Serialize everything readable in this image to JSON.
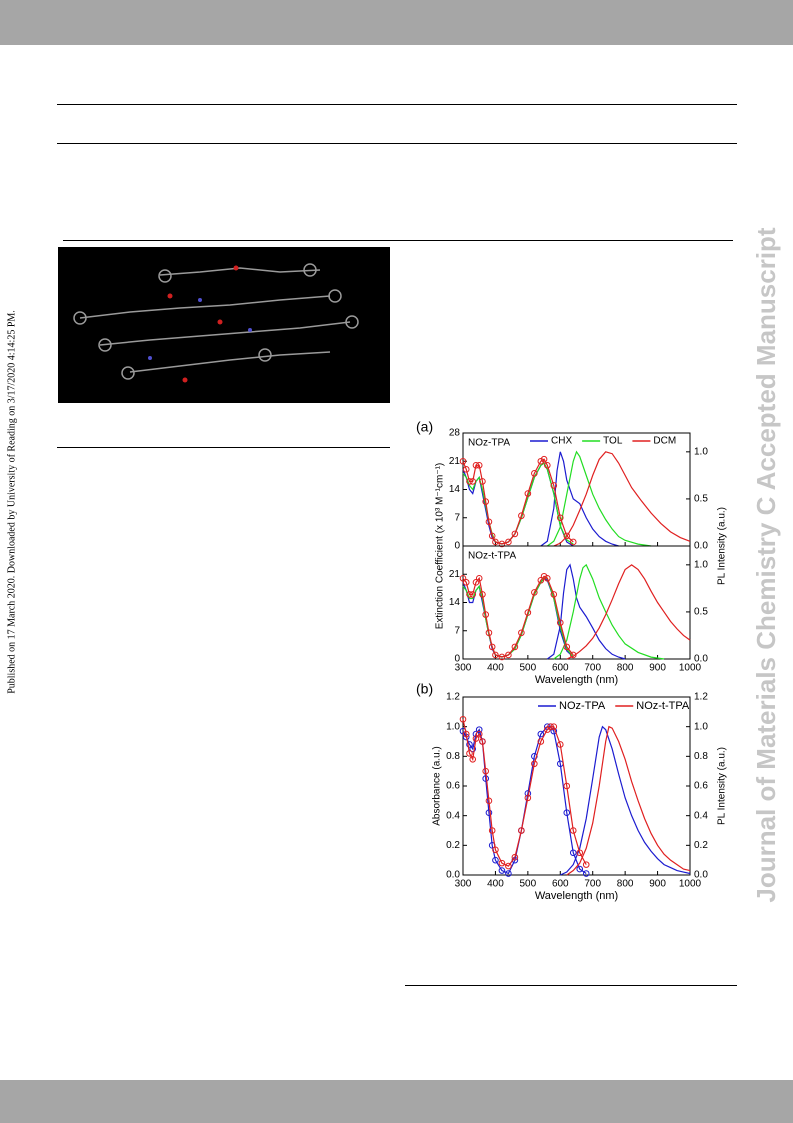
{
  "sidebar_left": "Published on 17 March 2020. Downloaded by University of Reading on 3/17/2020 4:14:25 PM.",
  "sidebar_right": "Journal of Materials Chemistry C Accepted Manuscript",
  "chart_data": [
    {
      "type": "line",
      "panel_label": "(a)",
      "title": "NOz-TPA",
      "ylabel": "Extinction Coefficient (x 10³ M⁻¹cm⁻¹)",
      "y2label": "PL Intensity (a.u.)",
      "xlim": [
        300,
        1000
      ],
      "xticks": [
        300,
        400,
        500,
        600,
        700,
        800,
        900,
        1000
      ],
      "xtick_labels": false,
      "ylim": [
        0,
        28
      ],
      "yticks": [
        0,
        7,
        14,
        21,
        28
      ],
      "y2lim": [
        0,
        1.2
      ],
      "y2ticks": [
        {
          "value": 0,
          "label": "0.0"
        },
        {
          "value": 0.5,
          "label": "0.5"
        },
        {
          "value": 1,
          "label": "1.0"
        }
      ],
      "legend": "top-right",
      "series": [
        {
          "name": "CHX",
          "color": "#1c1cd0",
          "absorption": {
            "x": [
              300,
              310,
              320,
              330,
              340,
              350,
              360,
              370,
              380,
              390,
              400,
              420,
              440,
              460,
              480,
              500,
              520,
              540,
              550,
              560,
              580,
              600,
              620,
              640
            ],
            "values": [
              19,
              17,
              14,
              13,
              16,
              17,
              13,
              9,
              5,
              2,
              1,
              0.5,
              1,
              3,
              7,
              12,
              17,
              20,
              20.5,
              19,
              13,
              5,
              1,
              0
            ],
            "markers": false
          },
          "emission": {
            "x": [
              540,
              560,
              580,
              590,
              600,
              610,
              620,
              640,
              660,
              680,
              700,
              720,
              740,
              760,
              780
            ],
            "values": [
              0,
              0.05,
              0.4,
              0.8,
              1.0,
              0.9,
              0.7,
              0.5,
              0.45,
              0.3,
              0.18,
              0.1,
              0.05,
              0.02,
              0
            ],
            "axis": "y2"
          }
        },
        {
          "name": "TOL",
          "color": "#22dd22",
          "absorption": {
            "x": [
              300,
              310,
              320,
              330,
              340,
              350,
              360,
              370,
              380,
              390,
              400,
              420,
              440,
              460,
              480,
              500,
              520,
              540,
              550,
              560,
              580,
              600,
              620,
              640
            ],
            "values": [
              18,
              17,
              15,
              14,
              16,
              17,
              14,
              10,
              6,
              3,
              1,
              0.5,
              1,
              3,
              7,
              12,
              17,
              20,
              20.5,
              19,
              13,
              5,
              1.5,
              0.5
            ],
            "markers": false
          },
          "emission": {
            "x": [
              560,
              580,
              600,
              620,
              640,
              650,
              660,
              680,
              700,
              720,
              740,
              760,
              780,
              800,
              840,
              880
            ],
            "values": [
              0,
              0.05,
              0.2,
              0.55,
              0.9,
              1.0,
              0.95,
              0.75,
              0.55,
              0.4,
              0.28,
              0.18,
              0.1,
              0.06,
              0.02,
              0
            ],
            "axis": "y2"
          }
        },
        {
          "name": "DCM",
          "color": "#e02020",
          "absorption": {
            "x": [
              300,
              310,
              320,
              330,
              340,
              350,
              360,
              370,
              380,
              390,
              400,
              420,
              440,
              460,
              480,
              500,
              520,
              540,
              550,
              560,
              580,
              600,
              620,
              640
            ],
            "values": [
              21,
              19,
              16,
              16,
              20,
              20,
              16,
              11,
              6,
              2.5,
              1,
              0.5,
              1,
              3,
              7.5,
              13,
              18,
              21,
              21.5,
              20,
              15,
              7,
              2.5,
              1
            ],
            "markers": true
          },
          "emission": {
            "x": [
              580,
              600,
              620,
              640,
              660,
              680,
              700,
              720,
              740,
              760,
              780,
              800,
              820,
              850,
              880,
              910,
              940,
              970,
              1000
            ],
            "values": [
              0,
              0.03,
              0.1,
              0.22,
              0.38,
              0.55,
              0.75,
              0.92,
              1.0,
              0.98,
              0.88,
              0.75,
              0.62,
              0.48,
              0.35,
              0.24,
              0.15,
              0.09,
              0.05
            ],
            "axis": "y2"
          }
        }
      ]
    },
    {
      "type": "line",
      "title": "NOz-t-TPA",
      "xlabel": "Wavelength (nm)",
      "xlim": [
        300,
        1000
      ],
      "xticks": [
        300,
        400,
        500,
        600,
        700,
        800,
        900,
        1000
      ],
      "ylim": [
        0,
        28
      ],
      "yticks": [
        0,
        7,
        14,
        21
      ],
      "y2lim": [
        0,
        1.2
      ],
      "y2ticks": [
        {
          "value": 0,
          "label": "0.0"
        },
        {
          "value": 0.5,
          "label": "0.5"
        },
        {
          "value": 1,
          "label": "1.0"
        }
      ],
      "series": [
        {
          "color": "#1c1cd0",
          "absorption": {
            "x": [
              300,
              310,
              320,
              330,
              340,
              350,
              360,
              370,
              380,
              390,
              400,
              420,
              440,
              460,
              480,
              500,
              520,
              540,
              550,
              560,
              580,
              600,
              620,
              640
            ],
            "values": [
              19,
              17,
              14,
              14,
              17,
              18,
              14,
              10,
              6,
              2.5,
              1,
              0.5,
              1,
              2.5,
              6,
              11,
              16,
              19,
              20,
              19.5,
              15,
              7,
              2,
              0.5
            ],
            "markers": false
          },
          "emission": {
            "x": [
              560,
              580,
              600,
              610,
              620,
              630,
              640,
              650,
              660,
              680,
              700,
              720,
              740,
              760,
              780,
              800
            ],
            "values": [
              0,
              0.05,
              0.35,
              0.7,
              0.95,
              1.0,
              0.85,
              0.65,
              0.55,
              0.45,
              0.33,
              0.2,
              0.11,
              0.05,
              0.02,
              0
            ],
            "axis": "y2"
          }
        },
        {
          "color": "#22dd22",
          "absorption": {
            "x": [
              300,
              310,
              320,
              330,
              340,
              350,
              360,
              370,
              380,
              390,
              400,
              420,
              440,
              460,
              480,
              500,
              520,
              540,
              550,
              560,
              580,
              600,
              620,
              640
            ],
            "values": [
              18,
              17,
              15,
              15,
              17,
              18,
              15,
              10,
              6,
              3,
              1,
              0.5,
              1,
              2.5,
              6,
              11,
              16,
              19,
              20,
              20,
              15,
              8,
              2.5,
              0.5
            ],
            "markers": false
          },
          "emission": {
            "x": [
              580,
              600,
              620,
              640,
              660,
              670,
              680,
              700,
              720,
              740,
              760,
              780,
              800,
              840,
              880,
              920
            ],
            "values": [
              0,
              0.05,
              0.2,
              0.5,
              0.85,
              0.97,
              1.0,
              0.85,
              0.65,
              0.5,
              0.36,
              0.25,
              0.16,
              0.07,
              0.02,
              0
            ],
            "axis": "y2"
          }
        },
        {
          "color": "#e02020",
          "absorption": {
            "x": [
              300,
              310,
              320,
              330,
              340,
              350,
              360,
              370,
              380,
              390,
              400,
              420,
              440,
              460,
              480,
              500,
              520,
              540,
              550,
              560,
              580,
              600,
              620,
              640
            ],
            "values": [
              20,
              19,
              16,
              16,
              19,
              20,
              16,
              11,
              6.5,
              3,
              1,
              0.5,
              1,
              3,
              6.5,
              11.5,
              16.5,
              19.5,
              20.5,
              20,
              16,
              9,
              3,
              1
            ],
            "markers": true
          },
          "emission": {
            "x": [
              620,
              640,
              660,
              680,
              700,
              720,
              740,
              760,
              780,
              800,
              820,
              840,
              860,
              880,
              900,
              920,
              940,
              960,
              980,
              1000
            ],
            "values": [
              0,
              0.03,
              0.08,
              0.14,
              0.22,
              0.33,
              0.47,
              0.63,
              0.8,
              0.95,
              1.0,
              0.95,
              0.85,
              0.72,
              0.6,
              0.5,
              0.4,
              0.32,
              0.25,
              0.2
            ],
            "axis": "y2"
          }
        }
      ]
    },
    {
      "type": "line",
      "panel_label": "(b)",
      "ylabel": "Absorbance (a.u.)",
      "y2label": "PL Intensity (a.u.)",
      "xlabel": "Wavelength (nm)",
      "xlim": [
        300,
        1000
      ],
      "xticks": [
        300,
        400,
        500,
        600,
        700,
        800,
        900,
        1000
      ],
      "ylim": [
        0,
        1.2
      ],
      "yticks": [
        {
          "value": 0,
          "label": "0.0"
        },
        {
          "value": 0.2,
          "label": "0.2"
        },
        {
          "value": 0.4,
          "label": "0.4"
        },
        {
          "value": 0.6,
          "label": "0.6"
        },
        {
          "value": 0.8,
          "label": "0.8"
        },
        {
          "value": 1,
          "label": "1.0"
        },
        {
          "value": 1.2,
          "label": "1.2"
        }
      ],
      "y2lim": [
        0,
        1.2
      ],
      "y2ticks": [
        {
          "value": 0,
          "label": "0.0"
        },
        {
          "value": 0.2,
          "label": "0.2"
        },
        {
          "value": 0.4,
          "label": "0.4"
        },
        {
          "value": 0.6,
          "label": "0.6"
        },
        {
          "value": 0.8,
          "label": "0.8"
        },
        {
          "value": 1,
          "label": "1.0"
        },
        {
          "value": 1.2,
          "label": "1.2"
        }
      ],
      "legend": "top-right",
      "series": [
        {
          "name": "NOz-TPA",
          "color": "#1c1cd0",
          "absorption": {
            "x": [
              300,
              310,
              320,
              330,
              340,
              350,
              360,
              370,
              380,
              390,
              400,
              420,
              440,
              460,
              480,
              500,
              520,
              540,
              560,
              570,
              580,
              600,
              620,
              640,
              660,
              680
            ],
            "values": [
              0.97,
              0.93,
              0.88,
              0.85,
              0.95,
              0.98,
              0.9,
              0.65,
              0.42,
              0.2,
              0.1,
              0.03,
              0.01,
              0.1,
              0.3,
              0.55,
              0.8,
              0.95,
              1.0,
              1.0,
              0.97,
              0.75,
              0.42,
              0.15,
              0.04,
              0.01
            ],
            "markers": true
          },
          "emission": {
            "x": [
              600,
              620,
              640,
              660,
              680,
              700,
              720,
              730,
              740,
              760,
              780,
              800,
              820,
              840,
              860,
              880,
              900,
              920,
              940,
              960,
              980,
              1000
            ],
            "values": [
              0,
              0.02,
              0.07,
              0.18,
              0.38,
              0.65,
              0.93,
              1.0,
              0.98,
              0.85,
              0.68,
              0.52,
              0.4,
              0.3,
              0.22,
              0.16,
              0.11,
              0.07,
              0.05,
              0.03,
              0.02,
              0.01
            ],
            "axis": "y2"
          }
        },
        {
          "name": "NOz-t-TPA",
          "color": "#e02020",
          "absorption": {
            "x": [
              300,
              310,
              320,
              330,
              340,
              350,
              360,
              370,
              380,
              390,
              400,
              420,
              440,
              460,
              480,
              500,
              520,
              540,
              560,
              570,
              580,
              600,
              620,
              640,
              660,
              680
            ],
            "values": [
              1.05,
              0.95,
              0.82,
              0.78,
              0.92,
              0.95,
              0.9,
              0.7,
              0.5,
              0.3,
              0.17,
              0.08,
              0.06,
              0.12,
              0.3,
              0.52,
              0.75,
              0.9,
              0.98,
              1.0,
              1.0,
              0.88,
              0.6,
              0.3,
              0.15,
              0.07
            ],
            "markers": true
          },
          "emission": {
            "x": [
              620,
              640,
              660,
              680,
              700,
              720,
              740,
              750,
              760,
              780,
              800,
              820,
              840,
              860,
              880,
              900,
              920,
              940,
              960,
              980,
              1000
            ],
            "values": [
              0,
              0.03,
              0.08,
              0.18,
              0.35,
              0.6,
              0.9,
              1.0,
              0.99,
              0.9,
              0.78,
              0.63,
              0.5,
              0.38,
              0.28,
              0.2,
              0.14,
              0.1,
              0.07,
              0.04,
              0.03
            ],
            "axis": "y2"
          }
        }
      ]
    }
  ]
}
